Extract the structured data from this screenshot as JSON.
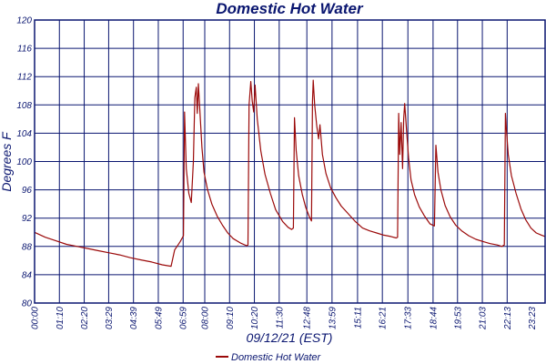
{
  "chart_data": {
    "type": "line",
    "title": "Domestic Hot Water",
    "xlabel": "09/12/21 (EST)",
    "ylabel": "Degrees F",
    "ylim": [
      80,
      120
    ],
    "yticks": [
      80,
      84,
      88,
      92,
      96,
      100,
      104,
      108,
      112,
      116,
      120
    ],
    "xlim": [
      "00:00",
      "24:00"
    ],
    "xticks": [
      "00:00",
      "01:10",
      "02:20",
      "03:29",
      "04:39",
      "05:49",
      "06:59",
      "08:00",
      "09:10",
      "10:20",
      "11:30",
      "12:48",
      "13:59",
      "15:11",
      "16:21",
      "17:33",
      "18:44",
      "19:53",
      "21:03",
      "22:13",
      "23:23"
    ],
    "grid": true,
    "legend": "bottom-center",
    "colors": {
      "axis": "#0a1670",
      "series": "#9b0a0a"
    },
    "series": [
      {
        "name": "Domestic Hot Water",
        "points": [
          [
            "00:00",
            90.0
          ],
          [
            "00:30",
            89.3
          ],
          [
            "01:00",
            88.8
          ],
          [
            "01:30",
            88.3
          ],
          [
            "02:00",
            88.0
          ],
          [
            "02:30",
            87.7
          ],
          [
            "03:00",
            87.4
          ],
          [
            "03:30",
            87.1
          ],
          [
            "04:00",
            86.8
          ],
          [
            "04:30",
            86.4
          ],
          [
            "05:00",
            86.1
          ],
          [
            "05:30",
            85.8
          ],
          [
            "06:00",
            85.4
          ],
          [
            "06:25",
            85.2
          ],
          [
            "06:35",
            87.5
          ],
          [
            "06:50",
            88.6
          ],
          [
            "07:00",
            89.5
          ],
          [
            "07:03",
            107.0
          ],
          [
            "07:08",
            99.0
          ],
          [
            "07:15",
            95.5
          ],
          [
            "07:22",
            94.2
          ],
          [
            "07:28",
            100.0
          ],
          [
            "07:32",
            109.0
          ],
          [
            "07:36",
            110.5
          ],
          [
            "07:39",
            106.8
          ],
          [
            "07:42",
            111.0
          ],
          [
            "07:46",
            107.5
          ],
          [
            "07:52",
            102.0
          ],
          [
            "07:58",
            98.5
          ],
          [
            "08:08",
            96.0
          ],
          [
            "08:20",
            94.0
          ],
          [
            "08:35",
            92.3
          ],
          [
            "08:50",
            91.0
          ],
          [
            "09:05",
            89.9
          ],
          [
            "09:20",
            89.1
          ],
          [
            "09:40",
            88.5
          ],
          [
            "09:58",
            88.1
          ],
          [
            "10:02",
            88.2
          ],
          [
            "10:05",
            108.0
          ],
          [
            "10:10",
            111.3
          ],
          [
            "10:14",
            108.5
          ],
          [
            "10:18",
            107.0
          ],
          [
            "10:22",
            110.8
          ],
          [
            "10:28",
            106.0
          ],
          [
            "10:38",
            101.5
          ],
          [
            "10:50",
            98.2
          ],
          [
            "11:05",
            95.5
          ],
          [
            "11:20",
            93.2
          ],
          [
            "11:40",
            91.5
          ],
          [
            "11:55",
            90.7
          ],
          [
            "12:05",
            90.4
          ],
          [
            "12:10",
            90.6
          ],
          [
            "12:13",
            106.2
          ],
          [
            "12:18",
            101.5
          ],
          [
            "12:25",
            98.0
          ],
          [
            "12:35",
            95.4
          ],
          [
            "12:45",
            93.5
          ],
          [
            "12:55",
            92.2
          ],
          [
            "13:01",
            91.6
          ],
          [
            "13:04",
            108.5
          ],
          [
            "13:06",
            111.5
          ],
          [
            "13:10",
            108.0
          ],
          [
            "13:16",
            105.0
          ],
          [
            "13:21",
            103.2
          ],
          [
            "13:25",
            105.2
          ],
          [
            "13:32",
            101.0
          ],
          [
            "13:42",
            98.3
          ],
          [
            "13:55",
            96.3
          ],
          [
            "14:10",
            94.9
          ],
          [
            "14:25",
            93.7
          ],
          [
            "14:45",
            92.6
          ],
          [
            "15:05",
            91.5
          ],
          [
            "15:25",
            90.6
          ],
          [
            "15:45",
            90.2
          ],
          [
            "16:05",
            89.9
          ],
          [
            "16:25",
            89.6
          ],
          [
            "16:45",
            89.4
          ],
          [
            "17:00",
            89.2
          ],
          [
            "17:04",
            89.3
          ],
          [
            "17:07",
            106.8
          ],
          [
            "17:10",
            101.0
          ],
          [
            "17:14",
            105.5
          ],
          [
            "17:18",
            99.0
          ],
          [
            "17:21",
            106.0
          ],
          [
            "17:24",
            108.2
          ],
          [
            "17:29",
            104.5
          ],
          [
            "17:35",
            100.5
          ],
          [
            "17:42",
            97.4
          ],
          [
            "17:52",
            95.3
          ],
          [
            "18:05",
            93.6
          ],
          [
            "18:20",
            92.3
          ],
          [
            "18:35",
            91.2
          ],
          [
            "18:48",
            90.9
          ],
          [
            "18:52",
            102.3
          ],
          [
            "18:58",
            98.5
          ],
          [
            "19:06",
            96.0
          ],
          [
            "19:18",
            93.8
          ],
          [
            "19:32",
            92.2
          ],
          [
            "19:48",
            91.0
          ],
          [
            "20:05",
            90.2
          ],
          [
            "20:25",
            89.5
          ],
          [
            "20:45",
            89.0
          ],
          [
            "21:05",
            88.7
          ],
          [
            "21:25",
            88.4
          ],
          [
            "21:45",
            88.2
          ],
          [
            "21:58",
            88.0
          ],
          [
            "22:05",
            88.2
          ],
          [
            "22:08",
            106.8
          ],
          [
            "22:11",
            104.5
          ],
          [
            "22:16",
            101.0
          ],
          [
            "22:25",
            98.0
          ],
          [
            "22:38",
            95.5
          ],
          [
            "22:52",
            93.3
          ],
          [
            "23:05",
            91.8
          ],
          [
            "23:20",
            90.6
          ],
          [
            "23:35",
            89.9
          ],
          [
            "23:50",
            89.6
          ],
          [
            "24:00",
            89.4
          ]
        ]
      }
    ]
  }
}
